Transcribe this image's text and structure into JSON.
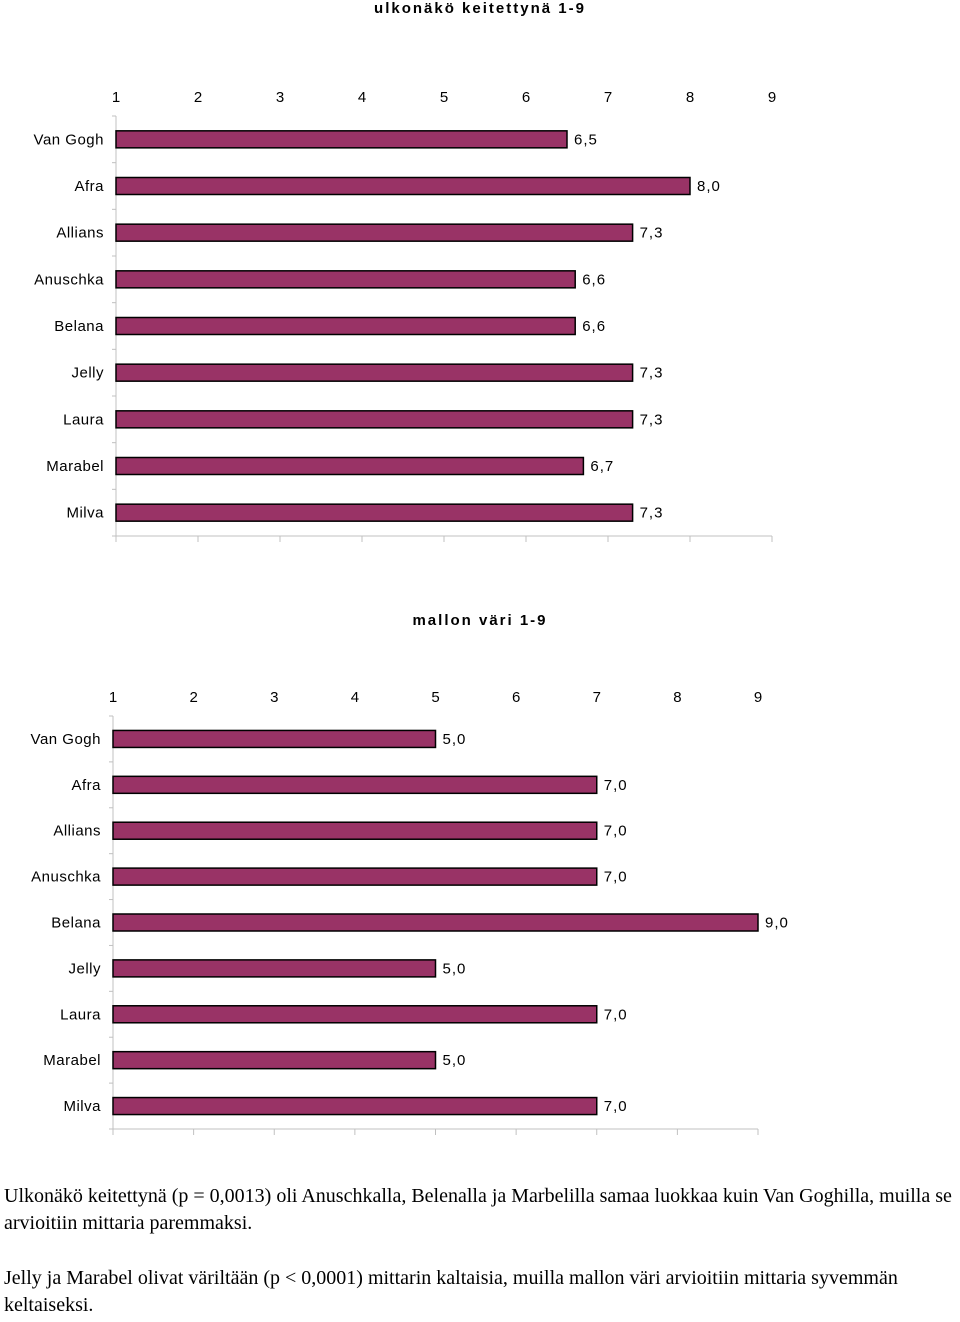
{
  "chart_data": [
    {
      "type": "bar",
      "orientation": "horizontal",
      "title": "ulkonäkö keitettynä 1-9",
      "categories": [
        "Van Gogh",
        "Afra",
        "Allians",
        "Anuschka",
        "Belana",
        "Jelly",
        "Laura",
        "Marabel",
        "Milva"
      ],
      "values": [
        6.5,
        8.0,
        7.3,
        6.6,
        6.6,
        7.3,
        7.3,
        6.7,
        7.3
      ],
      "value_labels": [
        "6,5",
        "8,0",
        "7,3",
        "6,6",
        "6,6",
        "7,3",
        "7,3",
        "6,7",
        "7,3"
      ],
      "xticks": [
        "1",
        "2",
        "3",
        "4",
        "5",
        "6",
        "7",
        "8",
        "9"
      ],
      "xlim": [
        1,
        9
      ],
      "bar_color": "#993366",
      "grid": false
    },
    {
      "type": "bar",
      "orientation": "horizontal",
      "title": "mallon väri 1-9",
      "categories": [
        "Van Gogh",
        "Afra",
        "Allians",
        "Anuschka",
        "Belana",
        "Jelly",
        "Laura",
        "Marabel",
        "Milva"
      ],
      "values": [
        5.0,
        7.0,
        7.0,
        7.0,
        9.0,
        5.0,
        7.0,
        5.0,
        7.0
      ],
      "value_labels": [
        "5,0",
        "7,0",
        "7,0",
        "7,0",
        "9,0",
        "5,0",
        "7,0",
        "5,0",
        "7,0"
      ],
      "xticks": [
        "1",
        "2",
        "3",
        "4",
        "5",
        "6",
        "7",
        "8",
        "9"
      ],
      "xlim": [
        1,
        9
      ],
      "bar_color": "#993366",
      "grid": false
    }
  ],
  "notes": [
    "Ulkonäkö keitettynä (p = 0,0013) oli Anuschkalla, Belenalla ja Marbelilla samaa luokkaa kuin Van Goghilla, muilla se arvioitiin mittaria paremmaksi.",
    "Jelly ja Marabel olivat väriltään (p < 0,0001) mittarin kaltaisia, muilla mallon väri arvioitiin mittaria syvemmän keltaiseksi."
  ]
}
